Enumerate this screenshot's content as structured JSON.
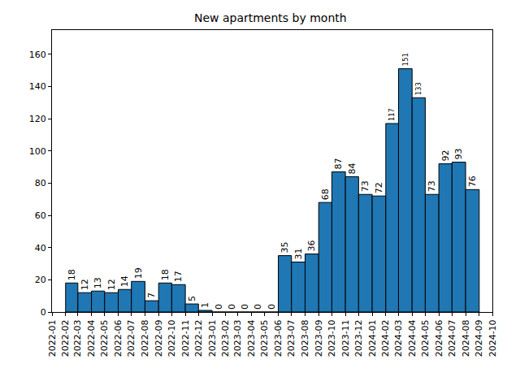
{
  "chart_data": {
    "type": "histogram",
    "title": "New apartments by month",
    "bins": [
      "2022-02",
      "2022-03",
      "2022-04",
      "2022-05",
      "2022-06",
      "2022-07",
      "2022-08",
      "2022-09",
      "2022-10",
      "2022-11",
      "2022-12",
      "2023-01",
      "2023-02",
      "2023-03",
      "2023-04",
      "2023-05",
      "2023-06",
      "2023-07",
      "2023-08",
      "2023-09",
      "2023-10",
      "2023-11",
      "2023-12",
      "2024-01",
      "2024-02",
      "2024-03",
      "2024-04",
      "2024-05",
      "2024-06",
      "2024-07",
      "2024-08",
      "2024-09"
    ],
    "values": [
      18,
      12,
      13,
      12,
      14,
      19,
      7,
      18,
      17,
      5,
      1,
      0,
      0,
      0,
      0,
      0,
      35,
      31,
      36,
      68,
      87,
      84,
      73,
      72,
      117,
      151,
      133,
      73,
      92,
      93,
      76
    ],
    "color": "#1f77b4",
    "xlim": [
      "2022-01",
      "2024-10"
    ],
    "xticks": [
      "2022-01",
      "2022-02",
      "2022-03",
      "2022-04",
      "2022-05",
      "2022-06",
      "2022-07",
      "2022-08",
      "2022-09",
      "2022-10",
      "2022-11",
      "2022-12",
      "2023-01",
      "2023-02",
      "2023-03",
      "2023-04",
      "2023-05",
      "2023-06",
      "2023-07",
      "2023-08",
      "2023-09",
      "2023-10",
      "2023-11",
      "2023-12",
      "2024-01",
      "2024-02",
      "2024-03",
      "2024-04",
      "2024-05",
      "2024-06",
      "2024-07",
      "2024-08",
      "2024-09",
      "2024-10"
    ],
    "ylim": [
      0,
      175
    ],
    "yticks": [
      0,
      20,
      40,
      60,
      80,
      100,
      120,
      140,
      160
    ],
    "grid": false,
    "data_labels": true
  }
}
